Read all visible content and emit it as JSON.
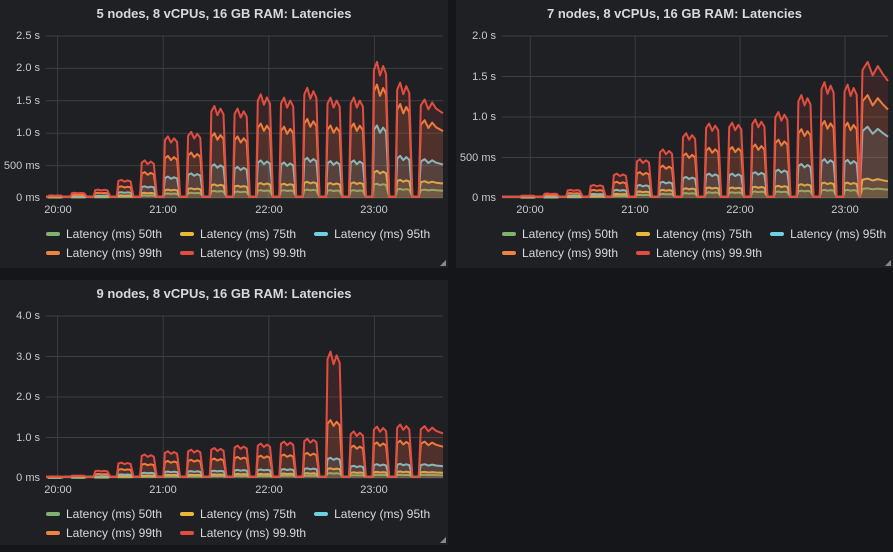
{
  "theme": {
    "page_bg": "#141619",
    "panel_bg": "#1f2023",
    "grid_color": "#3c3e42",
    "title_color": "#d8d9da",
    "axis_text_color": "#c9cacc",
    "legend_text_color": "#d8d9da"
  },
  "icons": {
    "panel_resize_handle": "◢"
  },
  "series": [
    {
      "name": "Latency (ms) 50th",
      "color": "#7EB26D"
    },
    {
      "name": "Latency (ms) 75th",
      "color": "#EAB839"
    },
    {
      "name": "Latency (ms) 95th",
      "color": "#6ED0E0"
    },
    {
      "name": "Latency (ms) 99th",
      "color": "#EF843C"
    },
    {
      "name": "Latency (ms) 99.9th",
      "color": "#E24D42"
    }
  ],
  "chart_data": [
    {
      "type": "line",
      "title": "5 nodes, 8 vCPUs, 16 GB RAM: Latencies",
      "legend_position": "bottom-left",
      "grid": true,
      "unit": "seconds",
      "xlim": [
        19.89,
        23.65
      ],
      "ylim": [
        0,
        2.5
      ],
      "x_ticks": {
        "values": [
          20,
          21,
          22,
          23
        ],
        "labels": [
          "20:00",
          "21:00",
          "22:00",
          "23:00"
        ]
      },
      "y_ticks": {
        "values": [
          0,
          0.5,
          1.0,
          1.5,
          2.0,
          2.5
        ],
        "labels": [
          "0 ms",
          "500 ms",
          "1.0 s",
          "1.5 s",
          "2.0 s",
          "2.5 s"
        ]
      },
      "bursts_format": "[t_start_hour, t_end_hour, peak_50th_s, peak_75th_s, peak_95th_s, peak_99th_s, peak_99.9th_s]",
      "bursts": [
        [
          19.9,
          20.06,
          0.008,
          0.012,
          0.02,
          0.028,
          0.04
        ],
        [
          20.12,
          20.28,
          0.01,
          0.015,
          0.025,
          0.05,
          0.08
        ],
        [
          20.34,
          20.5,
          0.012,
          0.02,
          0.035,
          0.08,
          0.13
        ],
        [
          20.56,
          20.72,
          0.02,
          0.04,
          0.09,
          0.18,
          0.28
        ],
        [
          20.78,
          20.94,
          0.04,
          0.08,
          0.18,
          0.4,
          0.58
        ],
        [
          21.0,
          21.16,
          0.07,
          0.13,
          0.33,
          0.65,
          0.95
        ],
        [
          21.22,
          21.38,
          0.08,
          0.15,
          0.38,
          0.7,
          1.02
        ],
        [
          21.44,
          21.6,
          0.11,
          0.21,
          0.52,
          1.0,
          1.42
        ],
        [
          21.66,
          21.82,
          0.1,
          0.19,
          0.48,
          0.95,
          1.38
        ],
        [
          21.88,
          22.04,
          0.12,
          0.23,
          0.58,
          1.15,
          1.6
        ],
        [
          22.1,
          22.26,
          0.12,
          0.22,
          0.55,
          1.1,
          1.55
        ],
        [
          22.32,
          22.48,
          0.13,
          0.25,
          0.62,
          1.22,
          1.7
        ],
        [
          22.54,
          22.7,
          0.12,
          0.23,
          0.57,
          1.12,
          1.55
        ],
        [
          22.76,
          22.92,
          0.12,
          0.24,
          0.58,
          1.15,
          1.55
        ],
        [
          22.98,
          23.14,
          0.22,
          0.42,
          1.12,
          1.75,
          2.1
        ],
        [
          23.2,
          23.36,
          0.14,
          0.28,
          0.65,
          1.45,
          1.78
        ],
        [
          23.42,
          23.62,
          0.13,
          0.26,
          0.6,
          1.2,
          1.52
        ]
      ]
    },
    {
      "type": "line",
      "title": "7 nodes, 8 vCPUs, 16 GB RAM: Latencies",
      "legend_position": "bottom-left",
      "grid": true,
      "unit": "seconds",
      "xlim": [
        19.73,
        23.41
      ],
      "ylim": [
        0,
        2.0
      ],
      "x_ticks": {
        "values": [
          20,
          21,
          22,
          23
        ],
        "labels": [
          "20:00",
          "21:00",
          "22:00",
          "23:00"
        ]
      },
      "y_ticks": {
        "values": [
          0,
          0.5,
          1.0,
          1.5,
          2.0
        ],
        "labels": [
          "0 ms",
          "500 ms",
          "1.0 s",
          "1.5 s",
          "2.0 s"
        ]
      },
      "bursts_format": "[t_start_hour, t_end_hour, peak_50th_s, peak_75th_s, peak_95th_s, peak_99th_s, peak_99.9th_s]",
      "bursts": [
        [
          19.9,
          20.06,
          0.005,
          0.008,
          0.012,
          0.02,
          0.03
        ],
        [
          20.12,
          20.28,
          0.007,
          0.01,
          0.018,
          0.035,
          0.055
        ],
        [
          20.34,
          20.5,
          0.01,
          0.015,
          0.03,
          0.06,
          0.1
        ],
        [
          20.56,
          20.72,
          0.015,
          0.025,
          0.05,
          0.1,
          0.16
        ],
        [
          20.78,
          20.94,
          0.025,
          0.05,
          0.1,
          0.2,
          0.3
        ],
        [
          21.0,
          21.16,
          0.04,
          0.08,
          0.16,
          0.32,
          0.48
        ],
        [
          21.22,
          21.38,
          0.05,
          0.1,
          0.2,
          0.4,
          0.6
        ],
        [
          21.44,
          21.6,
          0.06,
          0.12,
          0.26,
          0.55,
          0.8
        ],
        [
          21.66,
          21.82,
          0.07,
          0.13,
          0.3,
          0.62,
          0.92
        ],
        [
          21.88,
          22.04,
          0.07,
          0.13,
          0.3,
          0.63,
          0.93
        ],
        [
          22.1,
          22.26,
          0.08,
          0.14,
          0.32,
          0.66,
          0.97
        ],
        [
          22.32,
          22.48,
          0.08,
          0.15,
          0.35,
          0.72,
          1.06
        ],
        [
          22.54,
          22.7,
          0.09,
          0.17,
          0.42,
          0.85,
          1.27
        ],
        [
          22.76,
          22.92,
          0.1,
          0.19,
          0.48,
          0.95,
          1.43
        ],
        [
          22.98,
          23.14,
          0.1,
          0.19,
          0.47,
          0.93,
          1.4
        ],
        [
          23.14,
          23.41,
          0.12,
          0.24,
          0.88,
          1.27,
          1.68
        ]
      ]
    },
    {
      "type": "line",
      "title": "9 nodes, 8 vCPUs, 16 GB RAM: Latencies",
      "legend_position": "bottom-left",
      "grid": true,
      "unit": "seconds",
      "xlim": [
        19.89,
        23.65
      ],
      "ylim": [
        0,
        4.0
      ],
      "x_ticks": {
        "values": [
          20,
          21,
          22,
          23
        ],
        "labels": [
          "20:00",
          "21:00",
          "22:00",
          "23:00"
        ]
      },
      "y_ticks": {
        "values": [
          0,
          1.0,
          2.0,
          3.0,
          4.0
        ],
        "labels": [
          "0 ms",
          "1.0 s",
          "2.0 s",
          "3.0 s",
          "4.0 s"
        ]
      },
      "bursts_format": "[t_start_hour, t_end_hour, peak_50th_s, peak_75th_s, peak_95th_s, peak_99th_s, peak_99.9th_s]",
      "bursts": [
        [
          19.9,
          20.06,
          0.005,
          0.008,
          0.012,
          0.025,
          0.04
        ],
        [
          20.12,
          20.28,
          0.007,
          0.012,
          0.02,
          0.04,
          0.06
        ],
        [
          20.34,
          20.5,
          0.01,
          0.018,
          0.04,
          0.1,
          0.18
        ],
        [
          20.56,
          20.72,
          0.02,
          0.04,
          0.09,
          0.22,
          0.38
        ],
        [
          20.78,
          20.94,
          0.03,
          0.06,
          0.13,
          0.35,
          0.58
        ],
        [
          21.0,
          21.16,
          0.04,
          0.08,
          0.16,
          0.42,
          0.66
        ],
        [
          21.22,
          21.38,
          0.04,
          0.08,
          0.17,
          0.45,
          0.7
        ],
        [
          21.44,
          21.6,
          0.05,
          0.09,
          0.18,
          0.48,
          0.74
        ],
        [
          21.66,
          21.82,
          0.05,
          0.1,
          0.2,
          0.52,
          0.8
        ],
        [
          21.88,
          22.04,
          0.05,
          0.1,
          0.21,
          0.55,
          0.85
        ],
        [
          22.1,
          22.26,
          0.06,
          0.11,
          0.22,
          0.58,
          0.9
        ],
        [
          22.32,
          22.48,
          0.06,
          0.12,
          0.24,
          0.62,
          0.97
        ],
        [
          22.54,
          22.7,
          0.12,
          0.24,
          0.5,
          1.43,
          3.12
        ],
        [
          22.76,
          22.92,
          0.07,
          0.14,
          0.3,
          0.8,
          1.15
        ],
        [
          22.98,
          23.14,
          0.08,
          0.15,
          0.34,
          0.88,
          1.27
        ],
        [
          23.2,
          23.36,
          0.08,
          0.16,
          0.35,
          0.92,
          1.32
        ],
        [
          23.42,
          23.62,
          0.08,
          0.15,
          0.34,
          0.9,
          1.28
        ]
      ]
    }
  ]
}
